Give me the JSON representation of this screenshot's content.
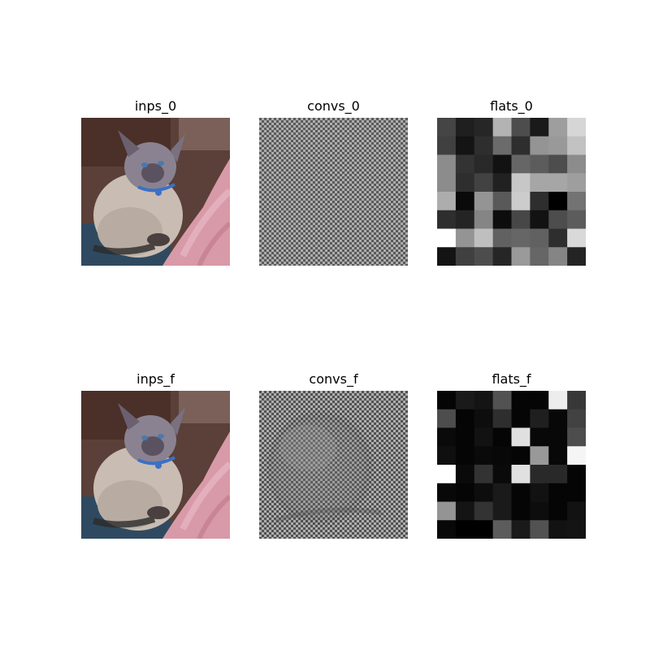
{
  "panels": [
    {
      "id": "inps_0",
      "title": "inps_0",
      "kind": "photo"
    },
    {
      "id": "convs_0",
      "title": "convs_0",
      "kind": "checker",
      "tone": "uniform"
    },
    {
      "id": "flats_0",
      "title": "flats_0",
      "kind": "grid",
      "grid": [
        [
          0.27,
          0.12,
          0.15,
          0.7,
          0.3,
          0.1,
          0.62,
          0.84
        ],
        [
          0.25,
          0.08,
          0.18,
          0.42,
          0.18,
          0.58,
          0.6,
          0.76
        ],
        [
          0.55,
          0.2,
          0.16,
          0.07,
          0.4,
          0.36,
          0.3,
          0.55
        ],
        [
          0.55,
          0.18,
          0.26,
          0.13,
          0.78,
          0.65,
          0.65,
          0.62
        ],
        [
          0.68,
          0.04,
          0.58,
          0.35,
          0.8,
          0.18,
          0.0,
          0.45
        ],
        [
          0.18,
          0.14,
          0.52,
          0.05,
          0.28,
          0.07,
          0.3,
          0.36
        ],
        [
          1.0,
          0.58,
          0.75,
          0.38,
          0.4,
          0.38,
          0.18,
          0.85
        ],
        [
          0.08,
          0.25,
          0.3,
          0.15,
          0.6,
          0.4,
          0.52,
          0.14
        ]
      ]
    },
    {
      "id": "inps_f",
      "title": "inps_f",
      "kind": "photo"
    },
    {
      "id": "convs_f",
      "title": "convs_f",
      "kind": "checker",
      "tone": "blob"
    },
    {
      "id": "flats_f",
      "title": "flats_f",
      "kind": "grid",
      "grid": [
        [
          0.02,
          0.1,
          0.08,
          0.32,
          0.02,
          0.02,
          0.93,
          0.22
        ],
        [
          0.3,
          0.02,
          0.05,
          0.18,
          0.02,
          0.12,
          0.03,
          0.26
        ],
        [
          0.04,
          0.02,
          0.07,
          0.02,
          0.88,
          0.03,
          0.03,
          0.3
        ],
        [
          0.06,
          0.02,
          0.04,
          0.03,
          0.02,
          0.6,
          0.03,
          0.96
        ],
        [
          1.0,
          0.04,
          0.2,
          0.04,
          0.88,
          0.16,
          0.16,
          0.02
        ],
        [
          0.03,
          0.02,
          0.05,
          0.1,
          0.02,
          0.07,
          0.02,
          0.02
        ],
        [
          0.58,
          0.08,
          0.2,
          0.1,
          0.02,
          0.05,
          0.02,
          0.07
        ],
        [
          0.03,
          0.0,
          0.0,
          0.36,
          0.1,
          0.32,
          0.07,
          0.08
        ]
      ]
    }
  ]
}
